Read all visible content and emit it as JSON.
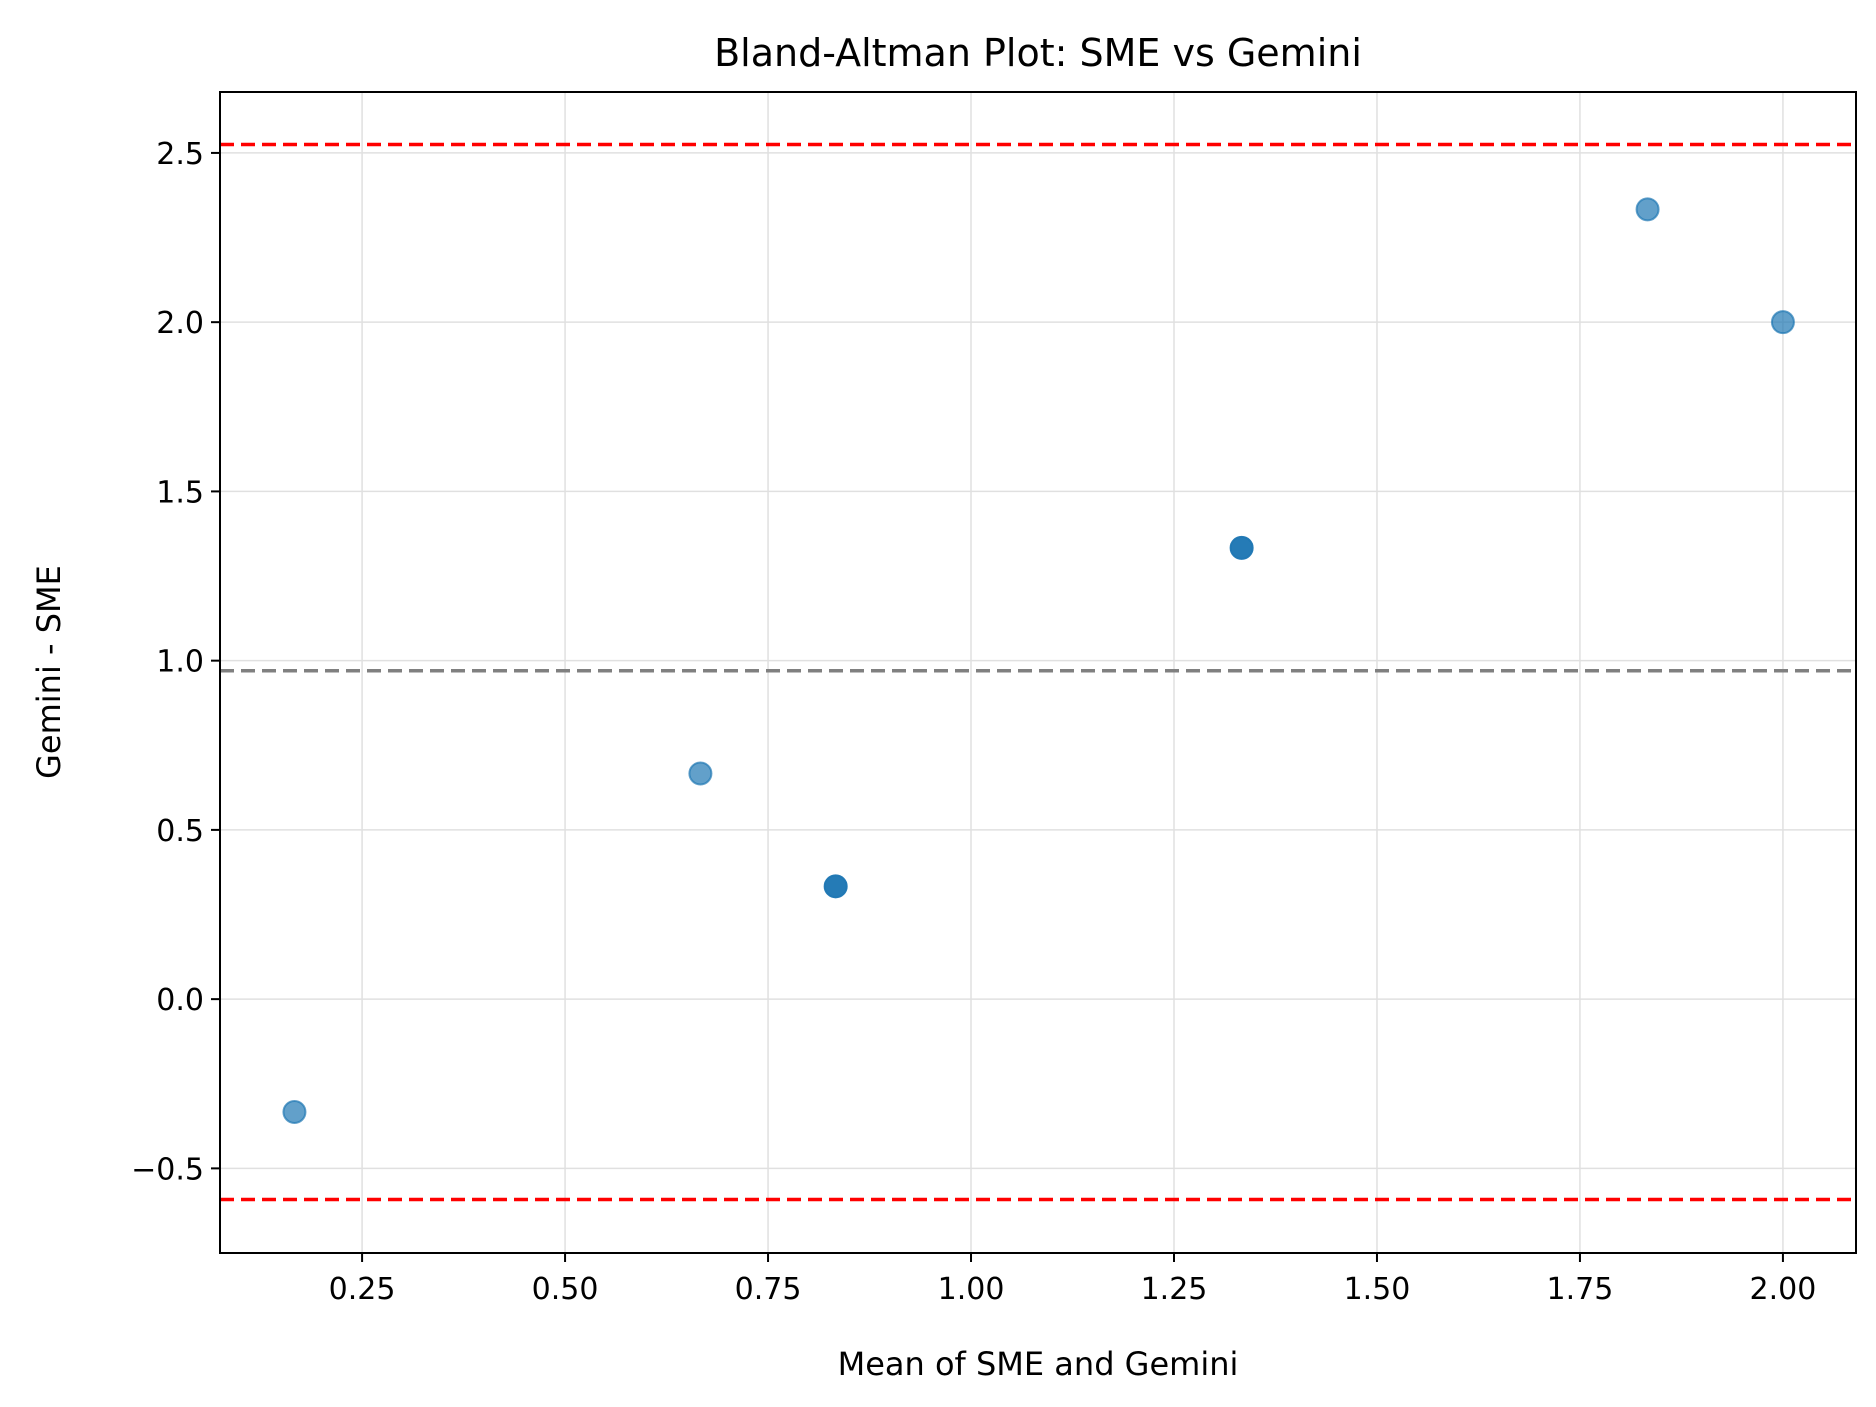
{
  "chart_data": {
    "type": "scatter",
    "title": "Bland-Altman Plot: SME vs Gemini",
    "xlabel": "Mean of SME and Gemini",
    "ylabel": "Gemini - SME",
    "xlim": [
      0.075,
      2.09
    ],
    "ylim": [
      -0.75,
      2.68
    ],
    "xticks": [
      0.25,
      0.5,
      0.75,
      1.0,
      1.25,
      1.5,
      1.75,
      2.0
    ],
    "xtick_labels": [
      "0.25",
      "0.50",
      "0.75",
      "1.00",
      "1.25",
      "1.50",
      "1.75",
      "2.00"
    ],
    "yticks": [
      -0.5,
      0.0,
      0.5,
      1.0,
      1.5,
      2.0,
      2.5
    ],
    "ytick_labels": [
      "−0.5",
      "0.0",
      "0.5",
      "1.0",
      "1.5",
      "2.0",
      "2.5"
    ],
    "grid": true,
    "points": [
      {
        "x": 0.1667,
        "y": -0.3333,
        "overlap": 1
      },
      {
        "x": 0.6667,
        "y": 0.6667,
        "overlap": 1
      },
      {
        "x": 0.8333,
        "y": 0.3333,
        "overlap": 3
      },
      {
        "x": 1.3333,
        "y": 1.3333,
        "overlap": 3
      },
      {
        "x": 1.8333,
        "y": 2.3333,
        "overlap": 1
      },
      {
        "x": 2.0,
        "y": 2.0,
        "overlap": 1
      }
    ],
    "reference_lines": [
      {
        "name": "mean difference",
        "y": 0.97,
        "color": "#808080",
        "style": "dashed"
      },
      {
        "name": "upper limit of agreement",
        "y": 2.525,
        "color": "#ff0000",
        "style": "dashed"
      },
      {
        "name": "lower limit of agreement",
        "y": -0.592,
        "color": "#ff0000",
        "style": "dashed"
      }
    ],
    "colors": {
      "points": "#1f77b4",
      "grid": "#e0e0e0",
      "axes": "#000000"
    }
  }
}
